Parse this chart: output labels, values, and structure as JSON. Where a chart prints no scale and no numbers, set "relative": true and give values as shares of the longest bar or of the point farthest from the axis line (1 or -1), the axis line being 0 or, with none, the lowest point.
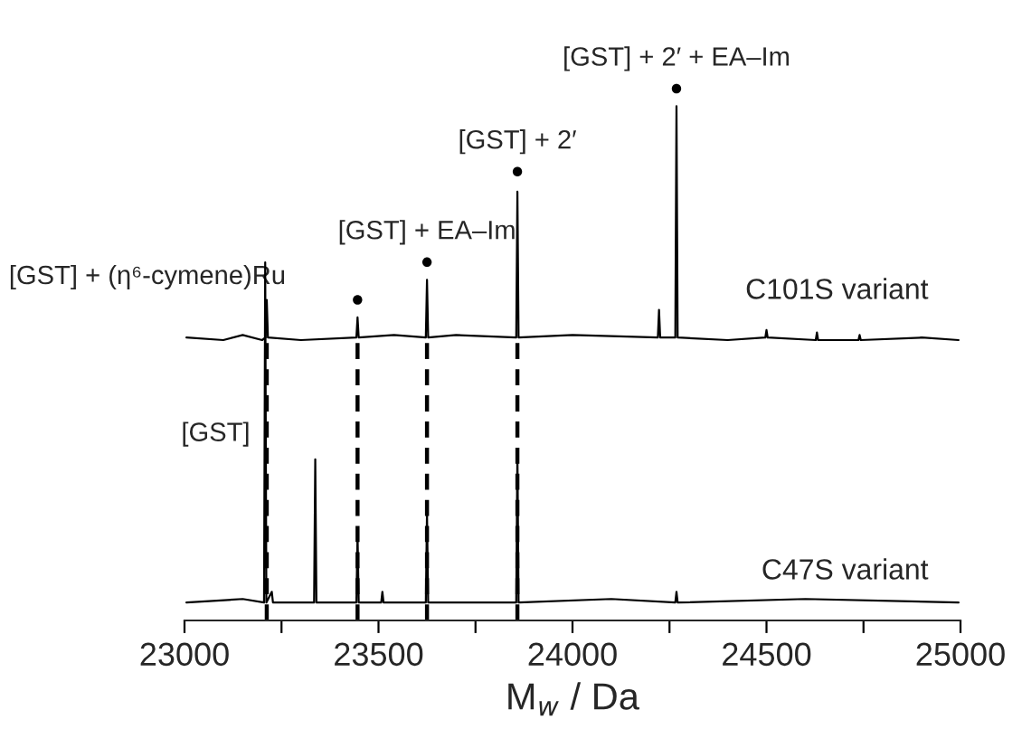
{
  "chart_data": [
    {
      "type": "line",
      "relative": true,
      "xlim": [
        23000,
        25000
      ],
      "tick_labels": false,
      "series": [
        {
          "name": "C101S variant",
          "color": "#000000",
          "x": [
            23005,
            23100,
            23150,
            23200,
            23209,
            23212,
            23215,
            23300,
            23443,
            23446,
            23449,
            23540,
            23622,
            23625,
            23628,
            23700,
            23855,
            23858,
            23861,
            24000,
            24220,
            24223,
            24226,
            24265,
            24268,
            24271,
            24400,
            24497,
            24500,
            24503,
            24627,
            24630,
            24633,
            24737,
            24740,
            24743,
            24900,
            24995
          ],
          "values": [
            0.01,
            0.0,
            0.02,
            0.0,
            0.01,
            0.16,
            0.01,
            0.0,
            0.01,
            0.09,
            0.01,
            0.02,
            0.01,
            0.24,
            0.01,
            0.02,
            0.01,
            0.59,
            0.01,
            0.02,
            0.01,
            0.12,
            0.01,
            0.01,
            0.93,
            0.01,
            0.0,
            0.01,
            0.04,
            0.01,
            0.0,
            0.03,
            0.0,
            0.0,
            0.02,
            0.0,
            0.01,
            0.0
          ]
        },
        {
          "type": "scatter",
          "color": "#000000",
          "marker": "circle",
          "x": [
            23446,
            23625,
            23858,
            24268
          ],
          "values": [
            0.16,
            0.31,
            0.67,
            1.0
          ]
        }
      ],
      "annotations": [
        {
          "text": "[GST] + (η⁶-cymene)Ru",
          "x": 23212,
          "y": 0.16
        },
        {
          "text": "[GST] + EA–Im",
          "x": 23625,
          "y": 0.31
        },
        {
          "text": "[GST] + 2′",
          "x": 23858,
          "y": 0.67
        },
        {
          "text": "[GST] + 2′ + EA–Im",
          "x": 24268,
          "y": 1.0
        }
      ]
    },
    {
      "type": "line",
      "relative": true,
      "xlim": [
        23000,
        25000
      ],
      "xlabel": "M$_{w}$ / Da",
      "xticks": [
        23000,
        {
          "value": 23250,
          "label": null
        },
        23500,
        {
          "value": 23750,
          "label": null
        },
        24000,
        {
          "value": 24250,
          "label": null
        },
        24500,
        {
          "value": 24750,
          "label": null
        },
        25000
      ],
      "series": [
        {
          "name": "C47S variant",
          "color": "#000000",
          "x": [
            23005,
            23150,
            23205,
            23208,
            23211,
            23225,
            23228,
            23334,
            23337,
            23340,
            23443,
            23446,
            23449,
            23507,
            23510,
            23513,
            23622,
            23625,
            23628,
            23855,
            23858,
            23861,
            24100,
            24265,
            24268,
            24271,
            24600,
            24995
          ],
          "values": [
            0.05,
            0.06,
            0.05,
            1.0,
            0.05,
            0.08,
            0.05,
            0.05,
            0.45,
            0.05,
            0.05,
            0.24,
            0.05,
            0.05,
            0.08,
            0.05,
            0.05,
            0.3,
            0.05,
            0.05,
            0.47,
            0.05,
            0.06,
            0.05,
            0.08,
            0.05,
            0.06,
            0.05
          ]
        }
      ],
      "annotations": [
        {
          "text": "[GST]",
          "x": 23208,
          "y": 0.52
        }
      ],
      "ref_lines": [
        {
          "axis": "x",
          "value": 23212,
          "color": "#000000",
          "line_style": "dashed"
        },
        {
          "axis": "x",
          "value": 23446,
          "color": "#000000",
          "line_style": "dashed"
        },
        {
          "axis": "x",
          "value": 23625,
          "color": "#000000",
          "line_style": "dashed"
        },
        {
          "axis": "x",
          "value": 23858,
          "color": "#000000",
          "line_style": "dashed"
        }
      ]
    }
  ]
}
